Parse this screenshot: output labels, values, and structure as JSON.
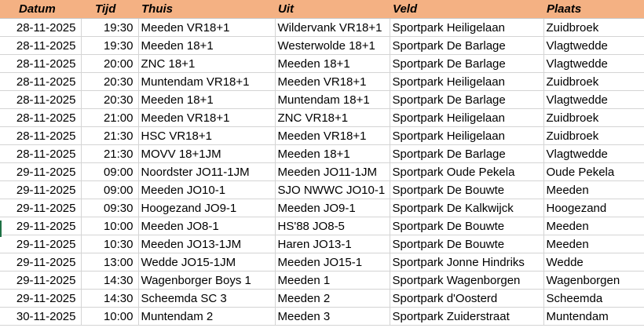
{
  "header": {
    "datum": "Datum",
    "tijd": "Tijd",
    "thuis": "Thuis",
    "uit": "Uit",
    "veld": "Veld",
    "plaats": "Plaats"
  },
  "rows": [
    {
      "datum": "28-11-2025",
      "tijd": "19:30",
      "thuis": "Meeden VR18+1",
      "uit": "Wildervank VR18+1",
      "veld": "Sportpark Heiligelaan",
      "plaats": "Zuidbroek"
    },
    {
      "datum": "28-11-2025",
      "tijd": "19:30",
      "thuis": "Meeden 18+1",
      "uit": "Westerwolde 18+1",
      "veld": "Sportpark De Barlage",
      "plaats": "Vlagtwedde"
    },
    {
      "datum": "28-11-2025",
      "tijd": "20:00",
      "thuis": "ZNC 18+1",
      "uit": "Meeden 18+1",
      "veld": "Sportpark De Barlage",
      "plaats": "Vlagtwedde"
    },
    {
      "datum": "28-11-2025",
      "tijd": "20:30",
      "thuis": "Muntendam VR18+1",
      "uit": "Meeden VR18+1",
      "veld": "Sportpark Heiligelaan",
      "plaats": "Zuidbroek"
    },
    {
      "datum": "28-11-2025",
      "tijd": "20:30",
      "thuis": "Meeden 18+1",
      "uit": "Muntendam 18+1",
      "veld": "Sportpark De Barlage",
      "plaats": "Vlagtwedde"
    },
    {
      "datum": "28-11-2025",
      "tijd": "21:00",
      "thuis": "Meeden VR18+1",
      "uit": "ZNC VR18+1",
      "veld": "Sportpark Heiligelaan",
      "plaats": "Zuidbroek"
    },
    {
      "datum": "28-11-2025",
      "tijd": "21:30",
      "thuis": "HSC VR18+1",
      "uit": "Meeden VR18+1",
      "veld": "Sportpark Heiligelaan",
      "plaats": "Zuidbroek"
    },
    {
      "datum": "28-11-2025",
      "tijd": "21:30",
      "thuis": "MOVV 18+1JM",
      "uit": "Meeden 18+1",
      "veld": "Sportpark De Barlage",
      "plaats": "Vlagtwedde"
    },
    {
      "datum": "29-11-2025",
      "tijd": "09:00",
      "thuis": "Noordster JO11-1JM",
      "uit": "Meeden JO11-1JM",
      "veld": "Sportpark Oude Pekela",
      "plaats": "Oude Pekela"
    },
    {
      "datum": "29-11-2025",
      "tijd": "09:00",
      "thuis": "Meeden JO10-1",
      "uit": "SJO NWWC JO10-1",
      "veld": "Sportpark De Bouwte",
      "plaats": "Meeden"
    },
    {
      "datum": "29-11-2025",
      "tijd": "09:30",
      "thuis": "Hoogezand JO9-1",
      "uit": "Meeden JO9-1",
      "veld": "Sportpark De Kalkwijck",
      "plaats": "Hoogezand"
    },
    {
      "datum": "29-11-2025",
      "tijd": "10:00",
      "thuis": "Meeden JO8-1",
      "uit": "HS'88 JO8-5",
      "veld": "Sportpark De Bouwte",
      "plaats": "Meeden"
    },
    {
      "datum": "29-11-2025",
      "tijd": "10:30",
      "thuis": "Meeden JO13-1JM",
      "uit": "Haren JO13-1",
      "veld": "Sportpark De Bouwte",
      "plaats": "Meeden"
    },
    {
      "datum": "29-11-2025",
      "tijd": "13:00",
      "thuis": "Wedde JO15-1JM",
      "uit": "Meeden JO15-1",
      "veld": "Sportpark Jonne Hindriks",
      "plaats": "Wedde"
    },
    {
      "datum": "29-11-2025",
      "tijd": "14:30",
      "thuis": "Wagenborger Boys 1",
      "uit": "Meeden 1",
      "veld": "Sportpark Wagenborgen",
      "plaats": "Wagenborgen"
    },
    {
      "datum": "29-11-2025",
      "tijd": "14:30",
      "thuis": "Scheemda SC 3",
      "uit": "Meeden 2",
      "veld": "Sportpark d'Oosterd",
      "plaats": "Scheemda"
    },
    {
      "datum": "30-11-2025",
      "tijd": "10:00",
      "thuis": "Muntendam 2",
      "uit": "Meeden 3",
      "veld": "Sportpark Zuiderstraat",
      "plaats": "Muntendam"
    }
  ]
}
